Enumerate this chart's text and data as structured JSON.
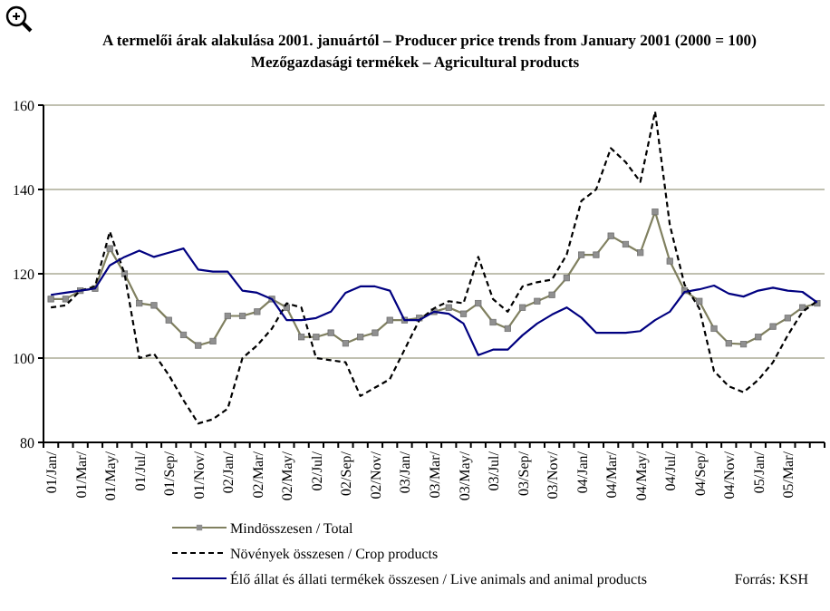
{
  "chart_data": {
    "type": "line",
    "title": "A termelői árak alakulása 2001. januártól – Producer price trends from January 2001 (2000 = 100)",
    "subtitle": "Mezőgazdasági termékek – Agricultural products",
    "categories": [
      "01/Jan/",
      null,
      "01/Mar/",
      null,
      "01/May/",
      null,
      "01/Jul/",
      null,
      "01/Sep/",
      null,
      "01/Nov/",
      null,
      "02/Jan/",
      null,
      "02/Mar/",
      null,
      "02/May/",
      null,
      "02/Jul/",
      null,
      "02/Sep/",
      null,
      "02/Nov/",
      null,
      "03/Jan/",
      null,
      "03/Mar/",
      null,
      "03/May/",
      null,
      "03/Jul/",
      null,
      "03/Sep/",
      null,
      "03/Nov/",
      null,
      "04/Jan/",
      null,
      "04/Mar/",
      null,
      "04/May/",
      null,
      "04/Jul/",
      null,
      "04/Sep/",
      null,
      "04/Nov/",
      null,
      "05/Jan/",
      null,
      "05/Mar/",
      null,
      null
    ],
    "series": [
      {
        "name": "Mindösszesen / Total",
        "color": "#808060",
        "marker": "square",
        "line_style": "solid",
        "values": [
          114,
          114,
          116,
          116.5,
          126,
          120,
          113,
          112.5,
          109,
          105.5,
          103,
          104,
          110,
          110,
          111,
          114,
          112,
          105,
          105,
          106,
          103.5,
          105,
          106,
          109,
          109,
          109.5,
          111,
          112,
          110.5,
          113,
          108.5,
          107,
          112,
          113.5,
          115,
          119,
          124.5,
          124.5,
          129,
          127,
          125,
          134.7,
          123,
          116,
          113.5,
          107,
          103.5,
          103.3,
          105,
          107.5,
          109.5,
          112,
          113
        ]
      },
      {
        "name": "Növények összesen / Crop products",
        "color": "#000000",
        "marker": "none",
        "line_style": "dashed",
        "values": [
          112,
          112.5,
          116,
          117,
          130,
          120,
          100,
          101,
          96,
          90,
          84.5,
          85.5,
          88,
          100,
          103,
          107,
          113,
          112,
          100,
          99.5,
          99,
          91,
          93,
          95,
          102,
          109,
          111.8,
          113.5,
          113,
          124,
          114,
          111,
          117,
          118,
          118.6,
          124.5,
          137.3,
          140,
          149.8,
          146.5,
          141.8,
          158.5,
          131.6,
          117.4,
          111.8,
          96.9,
          93.3,
          91.9,
          94.8,
          99,
          105.4,
          111,
          113.5
        ]
      },
      {
        "name": "Élő állat és állati termékek összesen / Live animals and animal products",
        "color": "#000080",
        "marker": "none",
        "line_style": "solid",
        "values": [
          115,
          115.5,
          116,
          116.5,
          122,
          124,
          125.5,
          124,
          125,
          126,
          121,
          120.5,
          120.5,
          116,
          115.5,
          114,
          109,
          109,
          109.5,
          111,
          115.5,
          117,
          117,
          116,
          109,
          109,
          111,
          110.5,
          108.2,
          100.7,
          102,
          102,
          105.4,
          108.2,
          110.3,
          112,
          109.6,
          106,
          106,
          106,
          106.4,
          109,
          111,
          115.7,
          116.3,
          117.2,
          115.3,
          114.6,
          116,
          116.7,
          116,
          115.7,
          113.2
        ]
      }
    ],
    "ylim": [
      80,
      160
    ],
    "yticks": [
      80,
      100,
      120,
      140,
      160
    ],
    "grid": "y",
    "legend": "bottom",
    "annotations": [
      "Forrás: KSH"
    ]
  }
}
